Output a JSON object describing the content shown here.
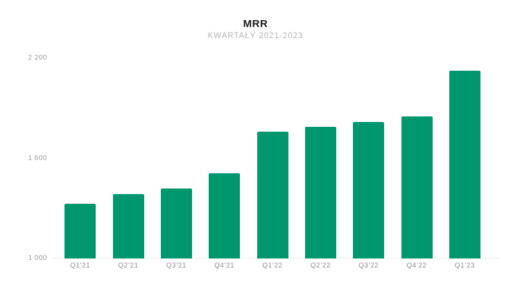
{
  "chart_data": {
    "type": "bar",
    "title": "MRR",
    "subtitle": "KWARTAŁY 2021-2023",
    "categories": [
      "Q1’21",
      "Q2’21",
      "Q3’21",
      "Q4’21",
      "Q1’22",
      "Q2’22",
      "Q3’22",
      "Q4’22",
      "Q1’23"
    ],
    "values": [
      1330,
      1385,
      1420,
      1510,
      1760,
      1790,
      1820,
      1850,
      2125
    ],
    "xlabel": "",
    "ylabel": "",
    "ylim": [
      1000,
      2200
    ],
    "yticks": [
      {
        "value": 1000,
        "label": "1 000"
      },
      {
        "value": 1600,
        "label": "1 600"
      },
      {
        "value": 2200,
        "label": "2 200"
      }
    ],
    "grid": false,
    "legend_position": "none",
    "colors": {
      "bar": "#00966E",
      "title_text": "#1b1b1b",
      "subtitle_text": "#b5b5b5",
      "axis_text": "#9b9b9b",
      "baseline": "#ededed"
    }
  }
}
